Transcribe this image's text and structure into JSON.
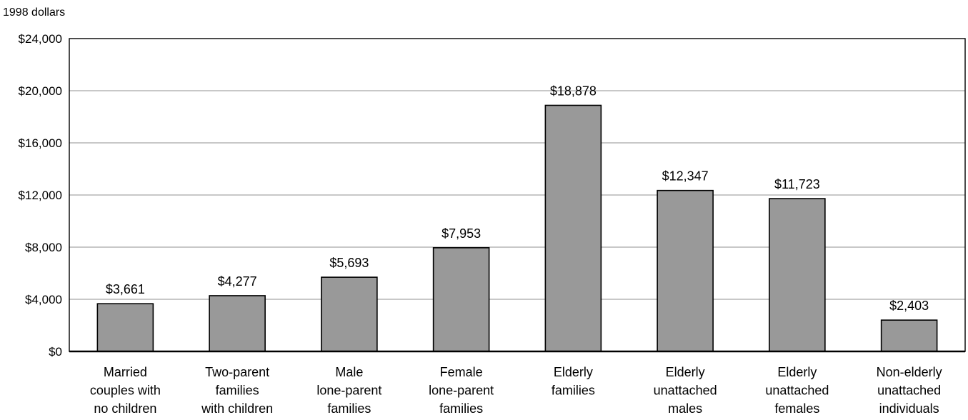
{
  "chart_data": {
    "type": "bar",
    "unit_label": "1998 dollars",
    "categories": [
      [
        "Married",
        "couples with",
        "no children"
      ],
      [
        "Two-parent",
        "families",
        "with children"
      ],
      [
        "Male",
        "lone-parent",
        "families"
      ],
      [
        "Female",
        "lone-parent",
        "families"
      ],
      [
        "Elderly",
        "families"
      ],
      [
        "Elderly",
        "unattached",
        "males"
      ],
      [
        "Elderly",
        "unattached",
        "females"
      ],
      [
        "Non-elderly",
        "unattached",
        "individuals"
      ]
    ],
    "values": [
      3661,
      4277,
      5693,
      7953,
      18878,
      12347,
      11723,
      2403
    ],
    "data_labels": [
      "$3,661",
      "$4,277",
      "$5,693",
      "$7,953",
      "$18,878",
      "$12,347",
      "$11,723",
      "$2,403"
    ],
    "ylim": [
      0,
      24000
    ],
    "y_ticks": [
      0,
      4000,
      8000,
      12000,
      16000,
      20000,
      24000
    ],
    "y_tick_labels": [
      "$0",
      "$4,000",
      "$8,000",
      "$12,000",
      "$16,000",
      "$20,000",
      "$24,000"
    ],
    "grid": true,
    "legend": "none",
    "colors": {
      "bar": "#999999",
      "grid": "#a8a8a8",
      "axis": "#000000"
    }
  }
}
